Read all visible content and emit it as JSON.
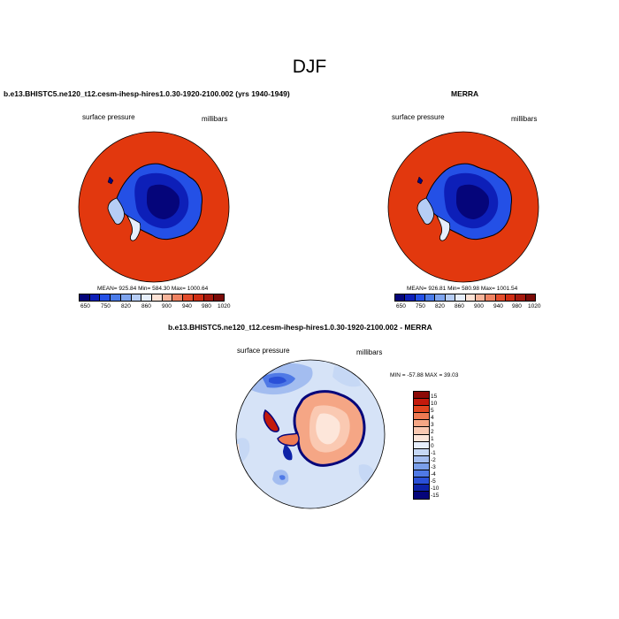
{
  "figure": {
    "title": "DJF"
  },
  "panels": [
    {
      "title": "b.e13.BHISTC5.ne120_t12.cesm-ihesp-hires1.0.30-1920-2100.002 (yrs 1940-1949)",
      "left_label": "surface pressure",
      "right_label": "millibars",
      "stats": "MEAN= 925.84  Min= 584.30  Max= 1000.64",
      "colorbar_labels": [
        "650",
        "750",
        "820",
        "860",
        "900",
        "940",
        "980",
        "1020"
      ]
    },
    {
      "title": "MERRA",
      "left_label": "surface pressure",
      "right_label": "millibars",
      "stats": "MEAN= 926.81  Min= 580.98  Max= 1001.54",
      "colorbar_labels": [
        "650",
        "750",
        "820",
        "860",
        "900",
        "940",
        "980",
        "1020"
      ]
    },
    {
      "title": "b.e13.BHISTC5.ne120_t12.cesm-ihesp-hires1.0.30-1920-2100.002 - MERRA",
      "left_label": "surface pressure",
      "right_label": "millibars",
      "stats": "MIN = -57.88 MAX =  39.03",
      "colorbar_labels": [
        "15",
        "10",
        "5",
        "4",
        "3",
        "2",
        "1",
        "0",
        "-1",
        "-2",
        "-3",
        "-4",
        "-5",
        "-10",
        "-15"
      ]
    }
  ],
  "colors": {
    "abs_scale": [
      "#05057a",
      "#0d1fb8",
      "#2450e6",
      "#4a7be8",
      "#7ea4ee",
      "#b6cdf5",
      "#e6eefb",
      "#fde2d5",
      "#f7b49a",
      "#ef8261",
      "#e34d2c",
      "#cf2d13",
      "#a5190d",
      "#7a0a07"
    ],
    "diff_scale": [
      "#8c0a07",
      "#c41a0c",
      "#e0451f",
      "#ef7a52",
      "#f5a685",
      "#fac9b2",
      "#fde6da",
      "#e6eefb",
      "#c6d8f5",
      "#a3bdf0",
      "#7a9fea",
      "#4f79e6",
      "#2a50d8",
      "#0d22a8",
      "#05057a"
    ],
    "ocean_abs": "#e2380e",
    "ocean_diff": "#d6e3f7"
  }
}
